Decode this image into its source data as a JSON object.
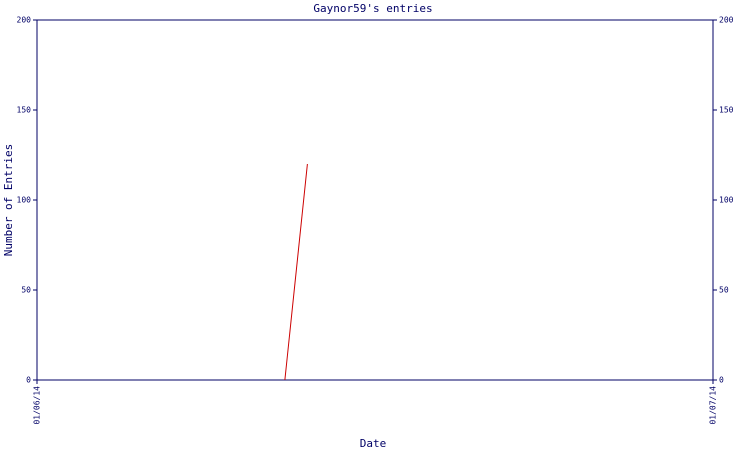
{
  "chart_data": {
    "type": "line",
    "title": "Gaynor59's entries",
    "x_label": "Date",
    "y_label": "Number of Entries",
    "x": [
      "12/06/14",
      "13/06/14"
    ],
    "series": [
      {
        "name": "Entries",
        "color": "#cc0000",
        "values": [
          0,
          120
        ]
      }
    ],
    "xlim": [
      "01/06/14",
      "01/07/14"
    ],
    "xticks": [
      "01/06/14",
      "01/07/14"
    ],
    "ylim": [
      0,
      200
    ],
    "yticks": [
      0,
      50,
      100,
      150,
      200
    ],
    "y2lim": [
      0,
      200
    ],
    "y2ticks": [
      0,
      50,
      100,
      150,
      200
    ],
    "axis_color": "#000066"
  }
}
